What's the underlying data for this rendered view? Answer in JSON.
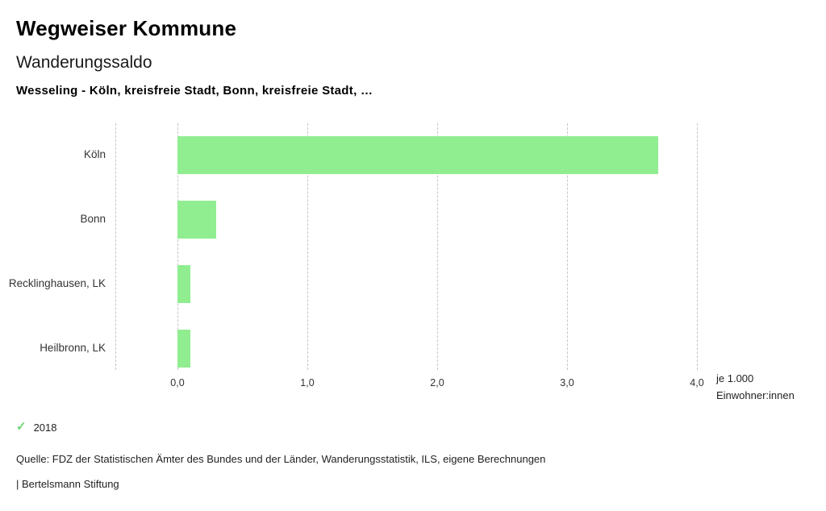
{
  "header": {
    "title": "Wegweiser Kommune",
    "subtitle": "Wanderungssaldo",
    "description": "Wesseling - Köln, kreisfreie Stadt, Bonn, kreisfreie Stadt, …"
  },
  "chart_data": {
    "type": "bar",
    "orientation": "horizontal",
    "title": "Wanderungssaldo",
    "subtitle": "Wesseling - Köln, kreisfreie Stadt, Bonn, kreisfreie Stadt, …",
    "categories": [
      "Köln",
      "Bonn",
      "Recklinghausen, LK",
      "Heilbronn, LK"
    ],
    "values": [
      3.7,
      0.3,
      0.1,
      0.1
    ],
    "series_name": "2018",
    "xlim": [
      0,
      4
    ],
    "x_ticks": [
      "0,0",
      "1,0",
      "2,0",
      "3,0",
      "4,0"
    ],
    "x_tick_values": [
      0,
      1,
      2,
      3,
      4
    ],
    "grid": "vertical-dashed",
    "legend_position": "bottom-left",
    "bar_color": "#90ee90",
    "unit_line1": "je 1.000",
    "unit_line2": "Einwohner:innen"
  },
  "legend": {
    "check_glyph": "✓",
    "check_color": "#6fd66f",
    "label": "2018"
  },
  "footer": {
    "source": "Quelle: FDZ der Statistischen Ämter des Bundes und der Länder, Wanderungsstatistik, ILS, eigene Berechnungen",
    "attribution": "| Bertelsmann Stiftung"
  }
}
